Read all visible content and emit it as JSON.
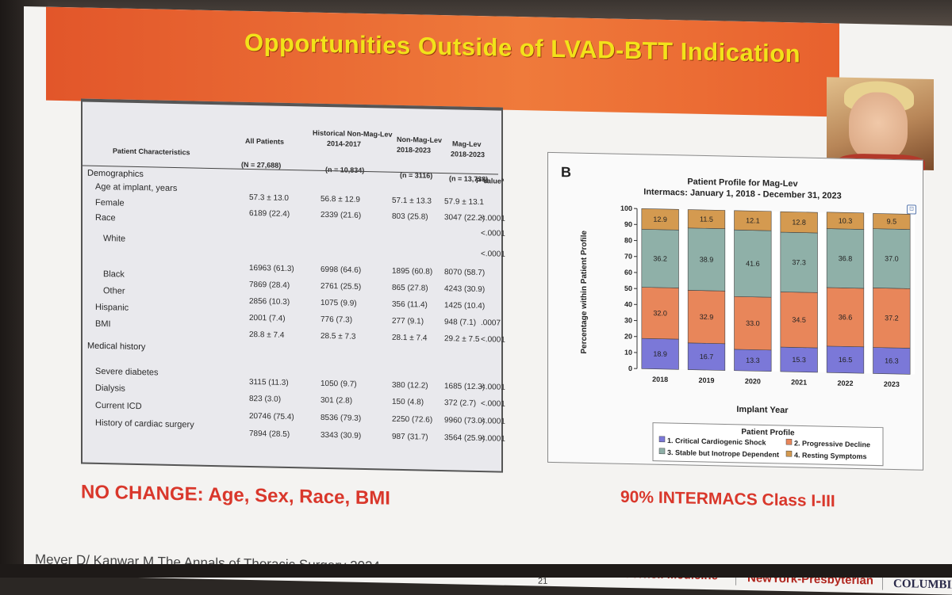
{
  "slide": {
    "title": "Opportunities Outside of LVAD-BTT Indication",
    "left_caption": "NO CHANGE: Age, Sex, Race, BMI",
    "right_caption": "90% INTERMACS Class I-III",
    "citation": "Meyer D/ Kanwar M The Annals of Thoracic Surgery 2024",
    "page_number": "21",
    "logos": [
      "Weill Cornell Medicine",
      "NewYork-Presbyterian",
      "COLUMBIA"
    ]
  },
  "table": {
    "headers": {
      "characteristics": "Patient Characteristics",
      "all_patients": "All Patients",
      "all_patients_n": "(N = 27,688)",
      "historical": "Historical Non-Mag-Lev",
      "historical_years": "2014-2017",
      "historical_n": "(n = 10,834)",
      "nonmaglev": "Non-Mag-Lev",
      "nonmaglev_years": "2018-2023",
      "nonmaglev_n": "(n = 3116)",
      "maglev": "Mag-Lev",
      "maglev_years": "2018-2023",
      "maglev_n": "(n = 13,738)",
      "p_value": "P Valueª"
    },
    "sections": {
      "demographics": "Demographics",
      "medical_history": "Medical history"
    },
    "rows": [
      {
        "label": "Age at implant, years",
        "all": "57.3 ± 13.0",
        "hist": "56.8 ± 12.9",
        "non": "57.1 ± 13.3",
        "mag": "57.9 ± 13.1",
        "p": ""
      },
      {
        "label": "Female",
        "all": "6189 (22.4)",
        "hist": "2339 (21.6)",
        "non": "803 (25.8)",
        "mag": "3047 (22.2)",
        "p": "<.0001"
      },
      {
        "label": "Race",
        "all": "",
        "hist": "",
        "non": "",
        "mag": "",
        "p": "<.0001"
      },
      {
        "label": "White",
        "all": "",
        "hist": "",
        "non": "",
        "mag": "",
        "p": "<.0001"
      },
      {
        "label": "",
        "all": "16963 (61.3)",
        "hist": "6998 (64.6)",
        "non": "1895 (60.8)",
        "mag": "8070 (58.7)",
        "p": ""
      },
      {
        "label": "Black",
        "all": "7869 (28.4)",
        "hist": "2761 (25.5)",
        "non": "865 (27.8)",
        "mag": "4243 (30.9)",
        "p": ""
      },
      {
        "label": "Other",
        "all": "2856 (10.3)",
        "hist": "1075 (9.9)",
        "non": "356 (11.4)",
        "mag": "1425 (10.4)",
        "p": ""
      },
      {
        "label": "Hispanic",
        "all": "2001 (7.4)",
        "hist": "776 (7.3)",
        "non": "277 (9.1)",
        "mag": "948 (7.1)",
        "p": ".0007"
      },
      {
        "label": "BMI",
        "all": "28.8 ± 7.4",
        "hist": "28.5 ± 7.3",
        "non": "28.1 ± 7.4",
        "mag": "29.2 ± 7.5",
        "p": "<.0001"
      },
      {
        "label": "Severe diabetes",
        "all": "3115 (11.3)",
        "hist": "1050 (9.7)",
        "non": "380 (12.2)",
        "mag": "1685 (12.3)",
        "p": "<.0001"
      },
      {
        "label": "Dialysis",
        "all": "823 (3.0)",
        "hist": "301 (2.8)",
        "non": "150 (4.8)",
        "mag": "372 (2.7)",
        "p": "<.0001"
      },
      {
        "label": "Current ICD",
        "all": "20746 (75.4)",
        "hist": "8536 (79.3)",
        "non": "2250 (72.6)",
        "mag": "9960 (73.0)",
        "p": "<.0001"
      },
      {
        "label": "History of cardiac surgery",
        "all": "7894 (28.5)",
        "hist": "3343 (30.9)",
        "non": "987 (31.7)",
        "mag": "3564 (25.9)",
        "p": "<.0001"
      }
    ]
  },
  "chart_panel": {
    "letter": "B",
    "expand_icon": "expand-icon"
  },
  "chart_data": {
    "type": "bar",
    "stacked": true,
    "title": "Patient Profile for Mag-Lev",
    "subtitle": "Intermacs: January 1, 2018 - December 31, 2023",
    "xlabel": "Implant Year",
    "ylabel": "Percentage within Patient Profile",
    "ylim": [
      0,
      100
    ],
    "yticks": [
      0,
      10,
      20,
      30,
      40,
      50,
      60,
      70,
      80,
      90,
      100
    ],
    "categories": [
      "2018",
      "2019",
      "2020",
      "2021",
      "2022",
      "2023"
    ],
    "legend_title": "Patient Profile",
    "series": [
      {
        "name": "1. Critical Cardiogenic Shock",
        "color": "#7b78d8",
        "values": [
          18.9,
          16.7,
          13.3,
          15.3,
          16.5,
          16.3
        ]
      },
      {
        "name": "2. Progressive Decline",
        "color": "#e8865a",
        "values": [
          32.0,
          32.9,
          33.0,
          34.5,
          36.6,
          37.2
        ]
      },
      {
        "name": "3. Stable but Inotrope Dependent",
        "color": "#8fb0a8",
        "values": [
          36.2,
          38.9,
          41.6,
          37.3,
          36.8,
          37.0
        ]
      },
      {
        "name": "4. Resting Symptoms",
        "color": "#d49a50",
        "values": [
          12.9,
          11.5,
          12.1,
          12.8,
          10.3,
          9.5
        ]
      }
    ]
  }
}
